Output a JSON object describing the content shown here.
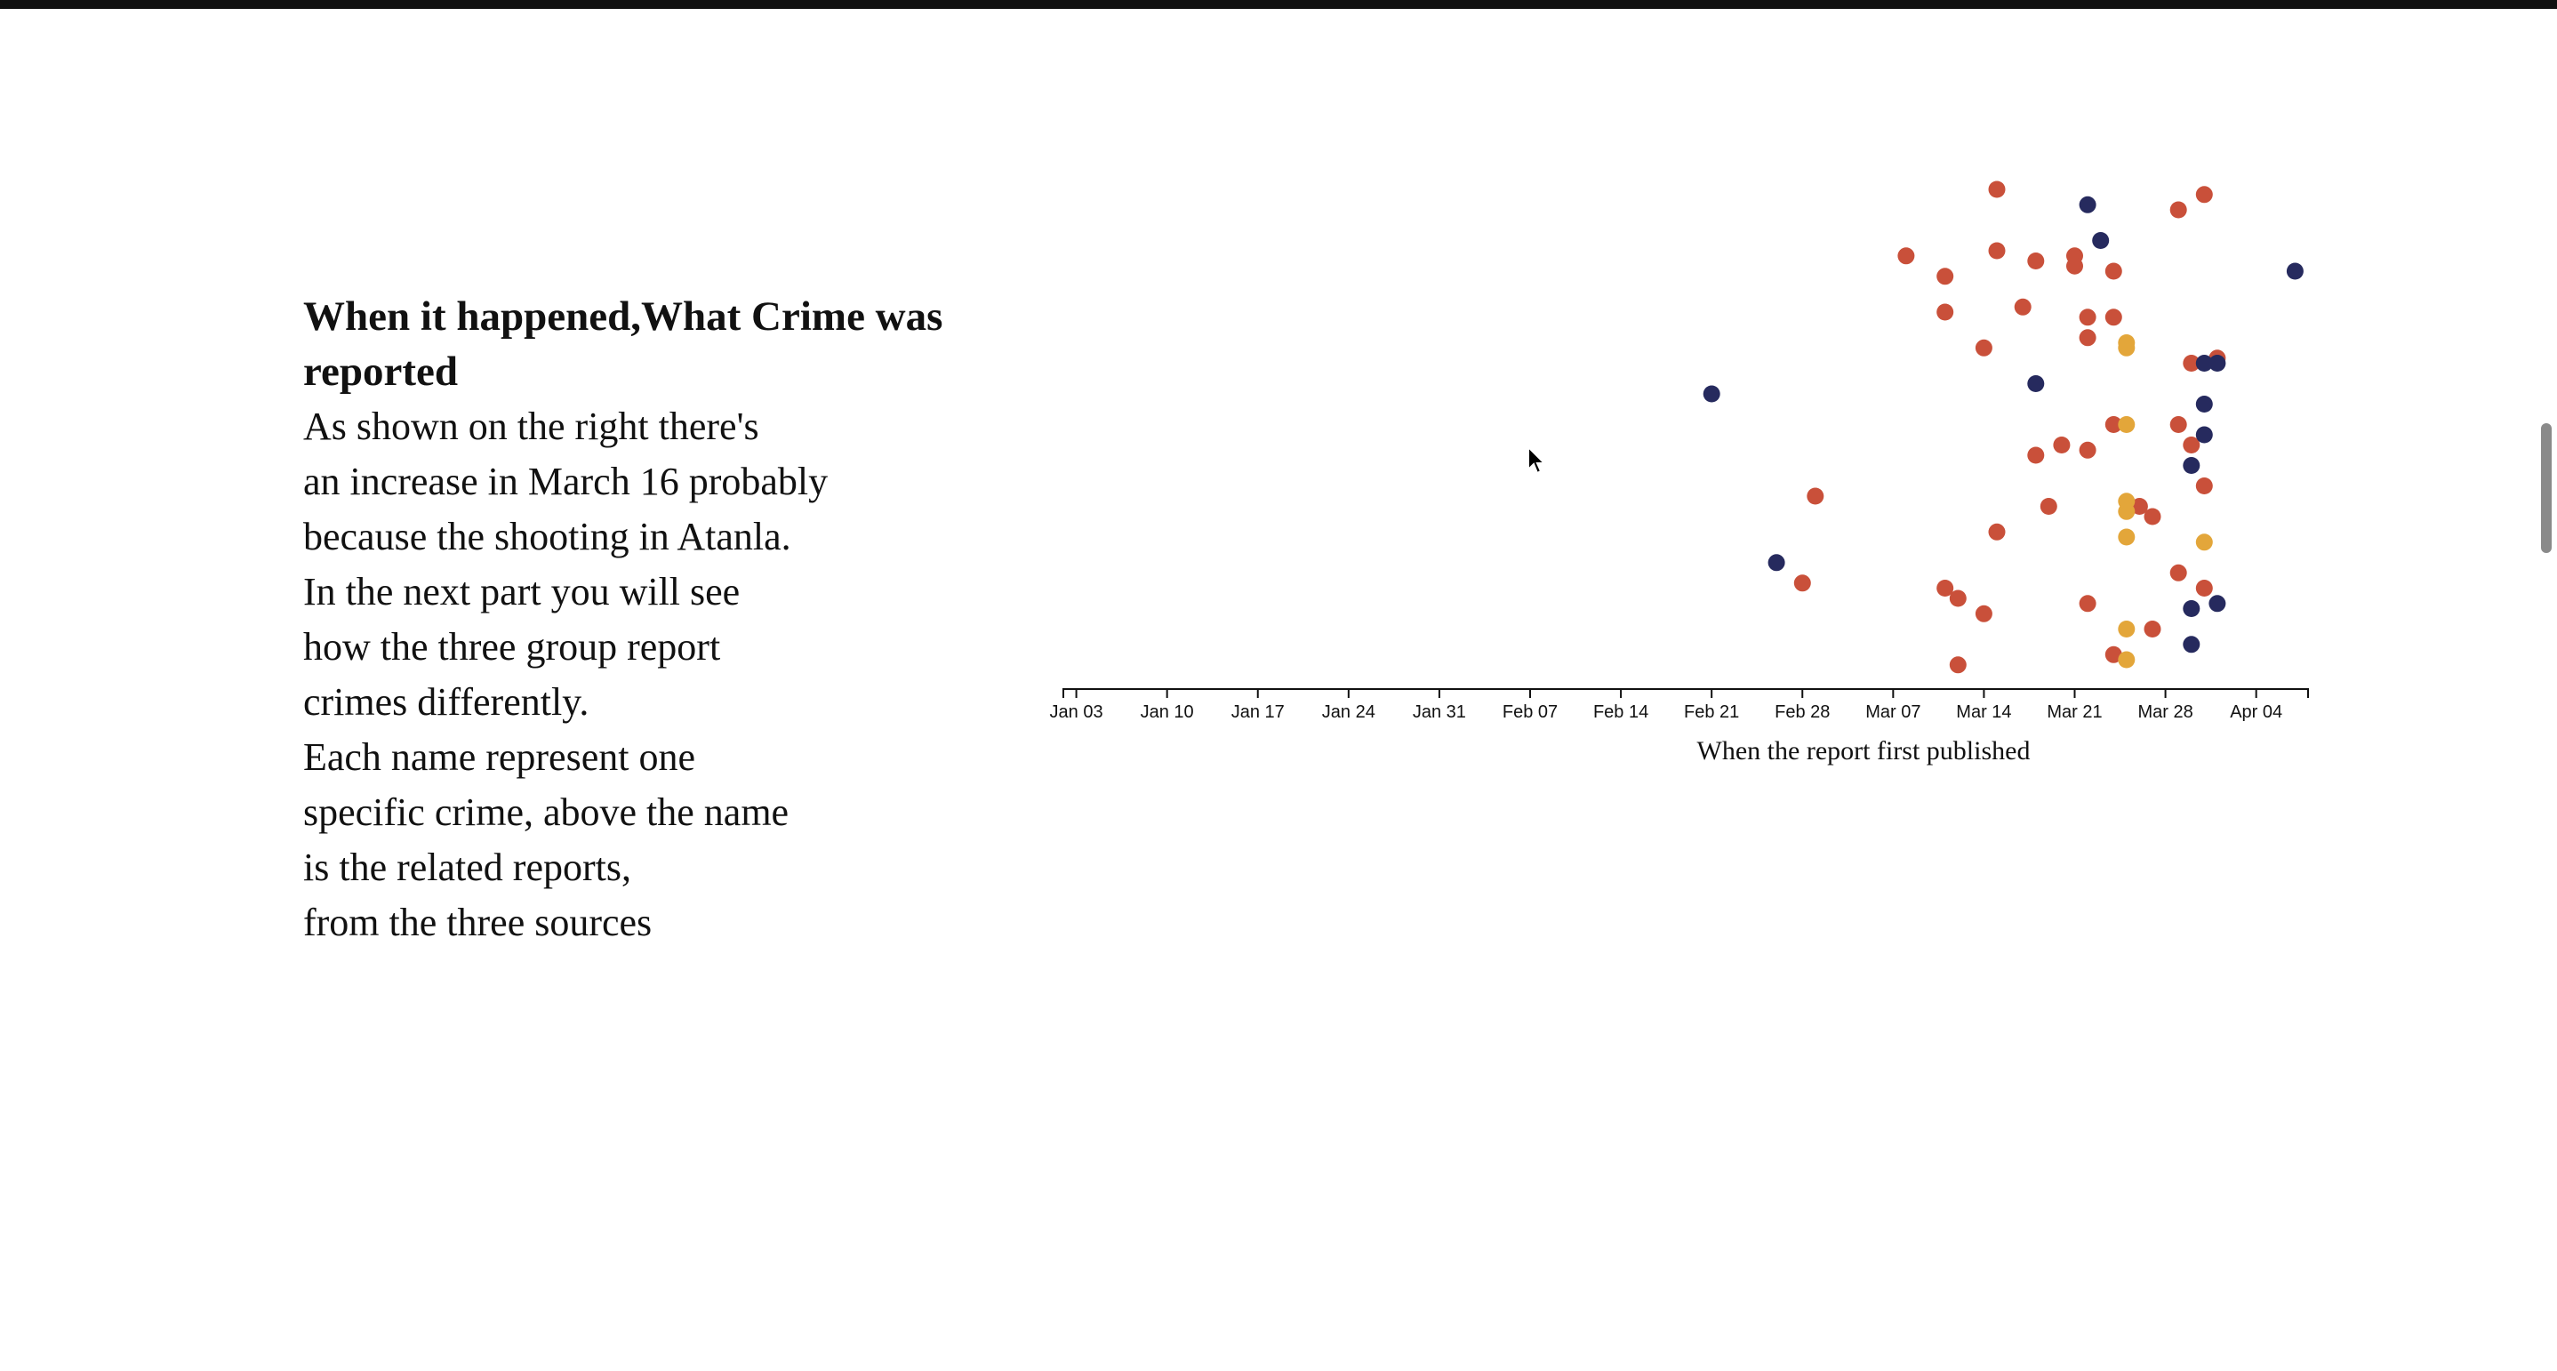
{
  "text": {
    "title": "When it happened,What Crime was reported",
    "lines": [
      "As shown on the right there's",
      "an increase in March 16 probably",
      "because the shooting in Atanla.",
      "In the next part you will see",
      "how the three group report",
      "crimes differently.",
      "Each name represent one",
      "specific crime, above the name",
      "is the related reports,",
      "from the three sources"
    ]
  },
  "chart_data": {
    "type": "scatter",
    "xlabel": "When the report first published",
    "ylabel": "",
    "x_axis": {
      "type": "date",
      "range": [
        "2021-01-02",
        "2021-04-08"
      ],
      "ticks": [
        "Jan 03",
        "Jan 10",
        "Jan 17",
        "Jan 24",
        "Jan 31",
        "Feb 07",
        "Feb 14",
        "Feb 21",
        "Feb 28",
        "Mar 07",
        "Mar 14",
        "Mar 21",
        "Mar 28",
        "Apr 04"
      ]
    },
    "y_axis": {
      "range": [
        0,
        100
      ],
      "visible": false
    },
    "grid": false,
    "legend": "none",
    "series": [
      {
        "color": "#c9503a",
        "points": [
          {
            "x": "2021-03-15",
            "y": 96
          },
          {
            "x": "2021-03-29",
            "y": 92
          },
          {
            "x": "2021-03-31",
            "y": 95
          },
          {
            "x": "2021-03-08",
            "y": 83
          },
          {
            "x": "2021-03-11",
            "y": 79
          },
          {
            "x": "2021-03-15",
            "y": 84
          },
          {
            "x": "2021-03-18",
            "y": 82
          },
          {
            "x": "2021-03-21",
            "y": 83
          },
          {
            "x": "2021-03-21",
            "y": 81
          },
          {
            "x": "2021-03-24",
            "y": 80
          },
          {
            "x": "2021-03-11",
            "y": 72
          },
          {
            "x": "2021-03-17",
            "y": 73
          },
          {
            "x": "2021-03-22",
            "y": 71
          },
          {
            "x": "2021-03-24",
            "y": 71
          },
          {
            "x": "2021-03-22",
            "y": 67
          },
          {
            "x": "2021-03-14",
            "y": 65
          },
          {
            "x": "2021-03-30",
            "y": 62
          },
          {
            "x": "2021-04-01",
            "y": 63
          },
          {
            "x": "2021-03-24",
            "y": 50
          },
          {
            "x": "2021-03-29",
            "y": 50
          },
          {
            "x": "2021-03-20",
            "y": 46
          },
          {
            "x": "2021-03-22",
            "y": 45
          },
          {
            "x": "2021-03-18",
            "y": 44
          },
          {
            "x": "2021-03-30",
            "y": 46
          },
          {
            "x": "2021-03-31",
            "y": 38
          },
          {
            "x": "2021-03-01",
            "y": 36
          },
          {
            "x": "2021-03-19",
            "y": 34
          },
          {
            "x": "2021-03-26",
            "y": 34
          },
          {
            "x": "2021-03-27",
            "y": 32
          },
          {
            "x": "2021-03-15",
            "y": 29
          },
          {
            "x": "2021-02-28",
            "y": 19
          },
          {
            "x": "2021-03-11",
            "y": 18
          },
          {
            "x": "2021-03-12",
            "y": 16
          },
          {
            "x": "2021-03-29",
            "y": 21
          },
          {
            "x": "2021-03-31",
            "y": 18
          },
          {
            "x": "2021-03-14",
            "y": 13
          },
          {
            "x": "2021-03-22",
            "y": 15
          },
          {
            "x": "2021-03-27",
            "y": 10
          },
          {
            "x": "2021-03-24",
            "y": 5
          },
          {
            "x": "2021-03-12",
            "y": 3
          }
        ]
      },
      {
        "color": "#262a5e",
        "points": [
          {
            "x": "2021-03-22",
            "y": 93
          },
          {
            "x": "2021-03-23",
            "y": 86
          },
          {
            "x": "2021-04-07",
            "y": 80
          },
          {
            "x": "2021-03-31",
            "y": 62
          },
          {
            "x": "2021-04-01",
            "y": 62
          },
          {
            "x": "2021-02-21",
            "y": 56
          },
          {
            "x": "2021-03-18",
            "y": 58
          },
          {
            "x": "2021-03-31",
            "y": 54
          },
          {
            "x": "2021-03-31",
            "y": 48
          },
          {
            "x": "2021-03-30",
            "y": 42
          },
          {
            "x": "2021-02-26",
            "y": 23
          },
          {
            "x": "2021-04-01",
            "y": 15
          },
          {
            "x": "2021-03-30",
            "y": 14
          },
          {
            "x": "2021-03-30",
            "y": 7
          }
        ]
      },
      {
        "color": "#e3a63a",
        "points": [
          {
            "x": "2021-03-25",
            "y": 66
          },
          {
            "x": "2021-03-25",
            "y": 65
          },
          {
            "x": "2021-03-25",
            "y": 50
          },
          {
            "x": "2021-03-25",
            "y": 35
          },
          {
            "x": "2021-03-25",
            "y": 33
          },
          {
            "x": "2021-03-25",
            "y": 28
          },
          {
            "x": "2021-03-31",
            "y": 27
          },
          {
            "x": "2021-03-25",
            "y": 10
          },
          {
            "x": "2021-03-25",
            "y": 4
          }
        ]
      }
    ]
  }
}
